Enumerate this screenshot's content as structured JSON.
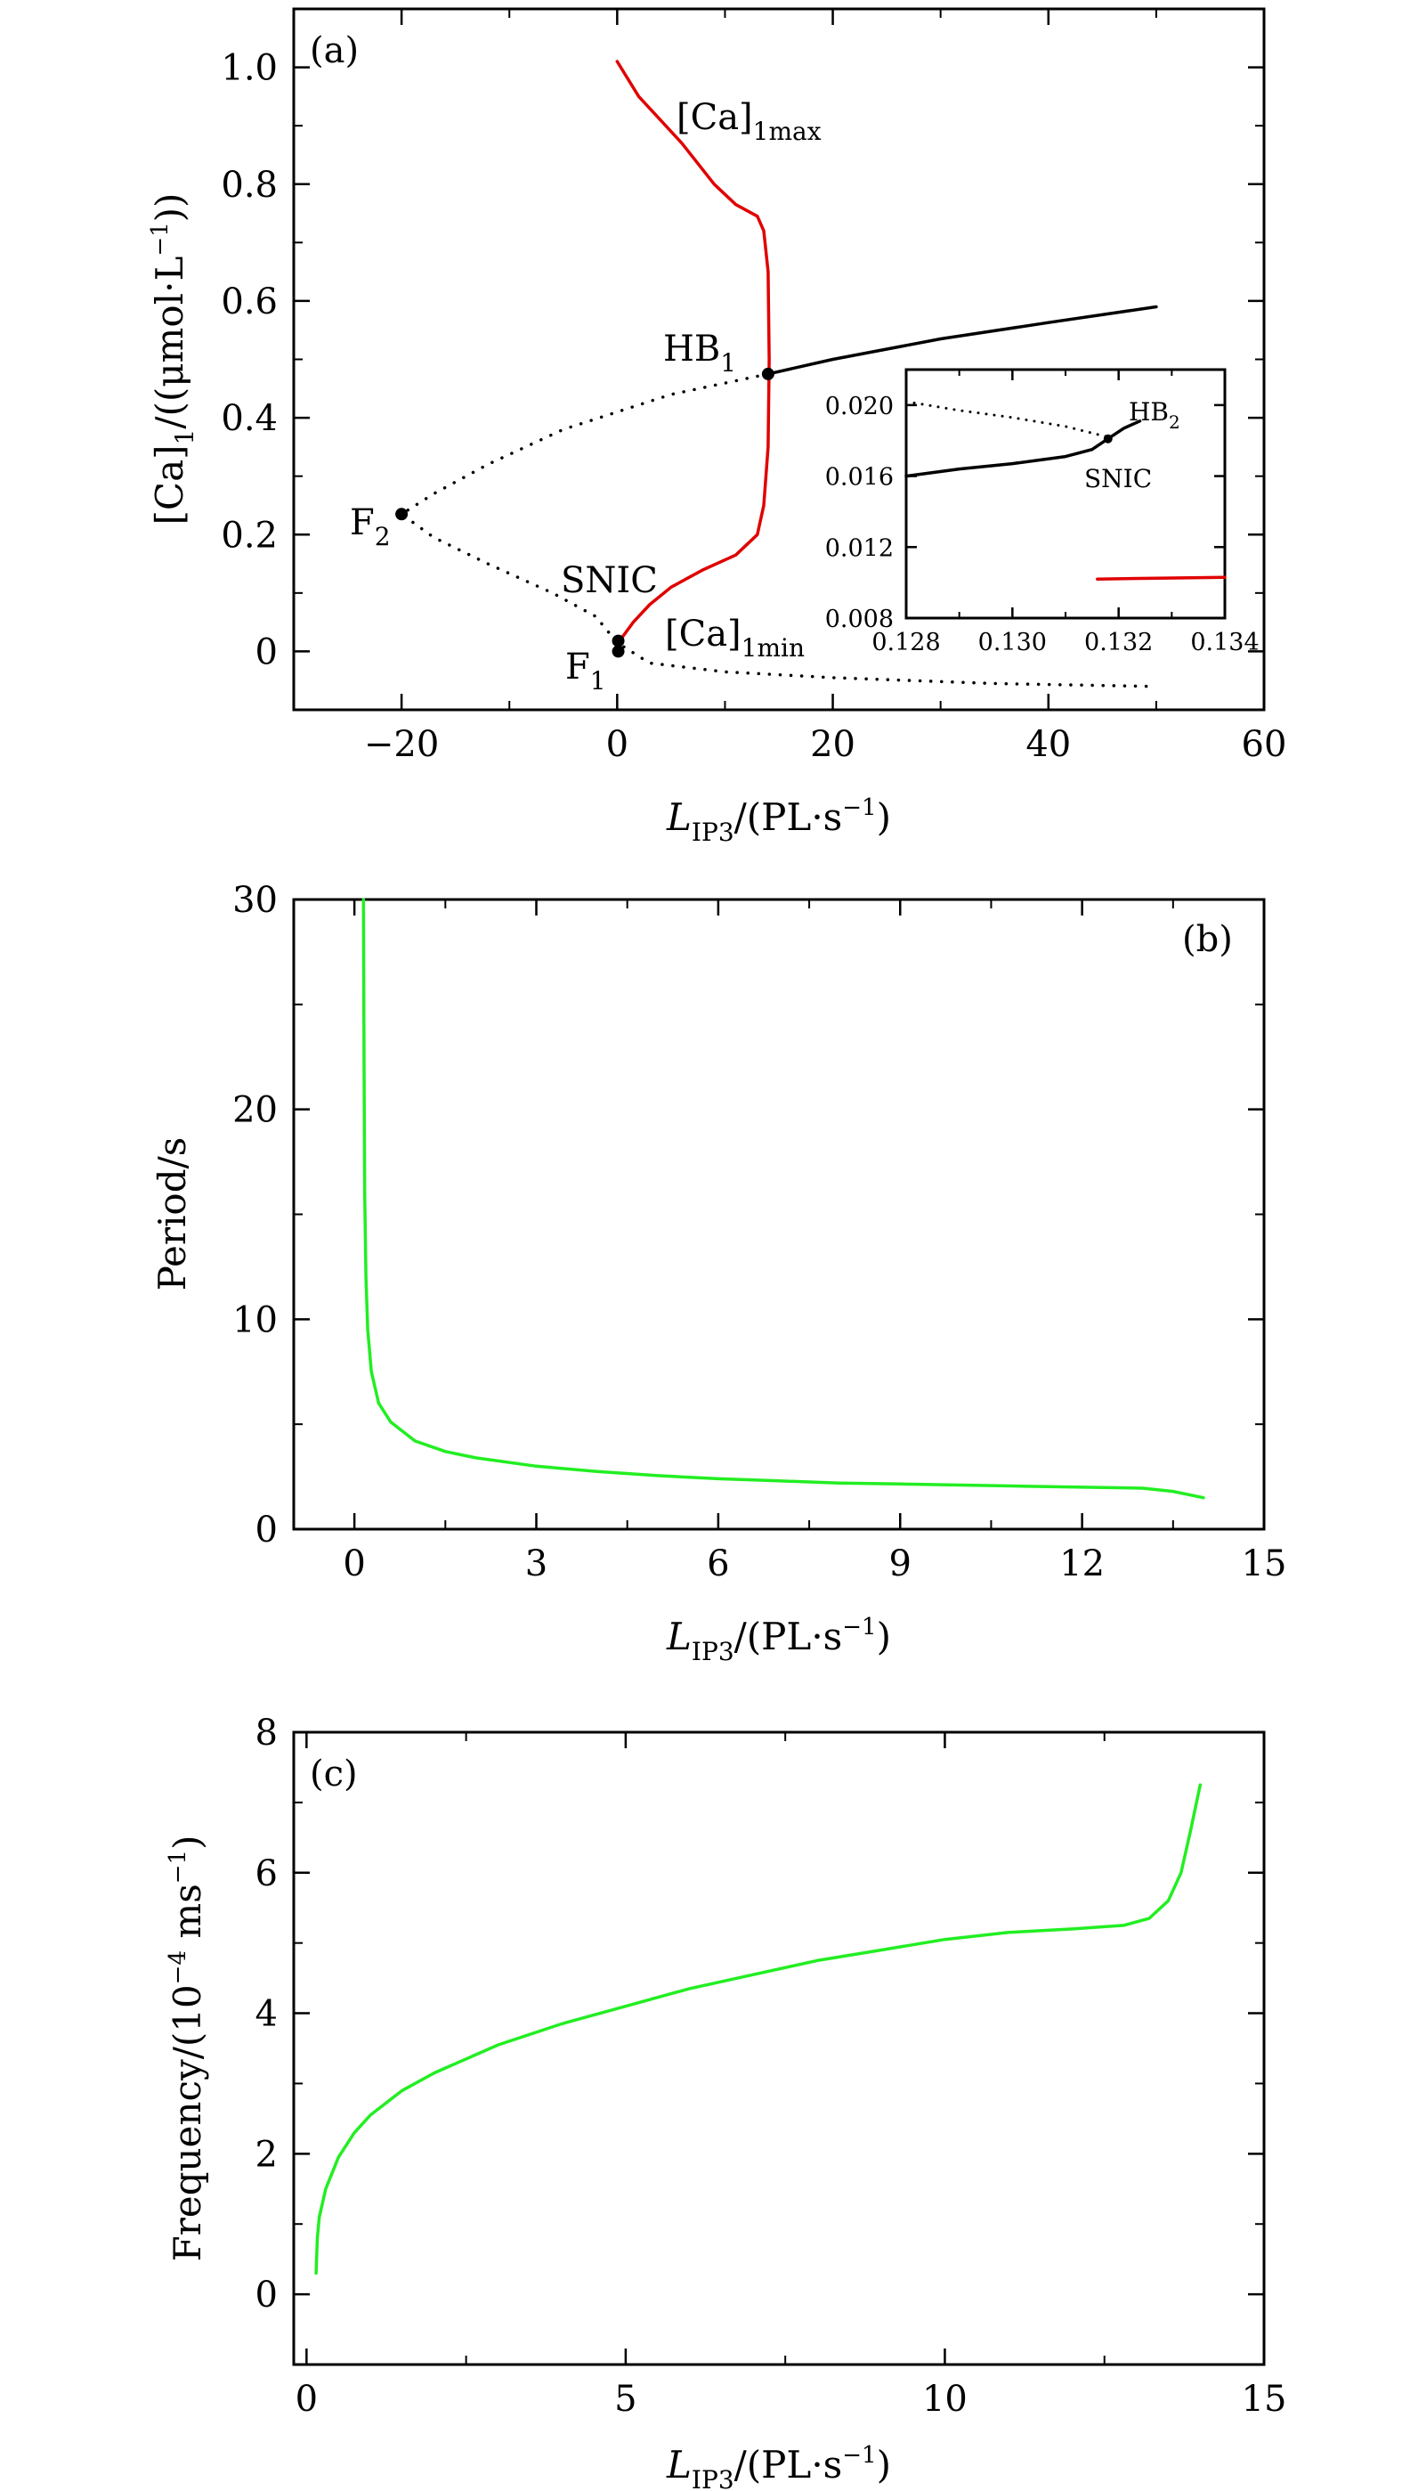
{
  "chart_data": [
    {
      "panel_label": "(a)",
      "type": "line",
      "xlim": [
        -30,
        60
      ],
      "ylim": [
        -0.1,
        1.1
      ],
      "x_ticks": [
        -20,
        0,
        20,
        40,
        60
      ],
      "x_tick_labels": [
        "−20",
        "0",
        "20",
        "40",
        "60"
      ],
      "y_ticks": [
        0,
        0.2,
        0.4,
        0.6,
        0.8,
        1.0
      ],
      "y_tick_labels": [
        "0",
        "0.2",
        "0.4",
        "0.6",
        "0.8",
        "1.0"
      ],
      "xlabel": {
        "main": "L",
        "sub": "IP3",
        "rest": "/(PL·s",
        "sup": "−1",
        "end": ")"
      },
      "ylabel": {
        "pre": "[Ca]",
        "sub": "1",
        "mid": "/((μmol·L",
        "sup": "−1",
        "end": "))"
      },
      "series": [
        {
          "style": "solid",
          "color": "#000000",
          "points": [
            [
              14,
              0.475
            ],
            [
              20,
              0.5
            ],
            [
              30,
              0.535
            ],
            [
              40,
              0.563
            ],
            [
              50,
              0.59
            ]
          ]
        },
        {
          "style": "dotted",
          "color": "#000000",
          "points": [
            [
              14,
              0.475
            ],
            [
              5,
              0.44
            ],
            [
              -5,
              0.38
            ],
            [
              -12,
              0.32
            ],
            [
              -17,
              0.27
            ],
            [
              -20,
              0.235
            ],
            [
              -17,
              0.195
            ],
            [
              -12,
              0.15
            ],
            [
              -6,
              0.1
            ],
            [
              -2,
              0.06
            ],
            [
              0,
              0.015
            ],
            [
              3,
              -0.02
            ],
            [
              10,
              -0.035
            ],
            [
              20,
              -0.045
            ],
            [
              35,
              -0.055
            ],
            [
              50,
              -0.06
            ]
          ]
        },
        {
          "name_pre": "[Ca]",
          "name_sub": "1max",
          "style": "solid",
          "color": "#e00000",
          "points": [
            [
              0,
              1.01
            ],
            [
              2,
              0.95
            ],
            [
              6,
              0.87
            ],
            [
              9,
              0.8
            ],
            [
              11,
              0.765
            ],
            [
              13,
              0.745
            ],
            [
              13.6,
              0.72
            ],
            [
              14,
              0.65
            ],
            [
              14.1,
              0.5
            ],
            [
              14,
              0.35
            ],
            [
              13.6,
              0.25
            ],
            [
              13,
              0.2
            ],
            [
              11,
              0.165
            ],
            [
              8,
              0.14
            ],
            [
              5,
              0.11
            ],
            [
              3,
              0.08
            ],
            [
              1.5,
              0.05
            ],
            [
              0.5,
              0.025
            ],
            [
              0.2,
              0.015
            ]
          ]
        }
      ],
      "points": [
        {
          "label": "HB",
          "label_sub": "1",
          "x": 14,
          "y": 0.475
        },
        {
          "label": "F",
          "label_sub": "2",
          "x": -20,
          "y": 0.235
        },
        {
          "label": "SNIC",
          "x": 0.1,
          "y": 0.018
        },
        {
          "label": "F",
          "label_sub": "1",
          "x": 0.1,
          "y": 0.0
        }
      ],
      "annotations": {
        "ca_max": {
          "pre": "[Ca]",
          "sub": "1max"
        },
        "ca_min": {
          "pre": "[Ca]",
          "sub": "1min"
        },
        "hb1": {
          "pre": "HB",
          "sub": "1"
        },
        "f2": {
          "pre": "F",
          "sub": "2"
        },
        "f1": {
          "pre": "F",
          "sub": "1"
        },
        "snic": "SNIC"
      },
      "inset": {
        "xlim": [
          0.128,
          0.134
        ],
        "ylim": [
          0.008,
          0.022
        ],
        "x_ticks": [
          0.128,
          0.13,
          0.132,
          0.134
        ],
        "x_tick_labels": [
          "0.128",
          "0.130",
          "0.132",
          "0.134"
        ],
        "y_ticks": [
          0.008,
          0.012,
          0.016,
          0.02
        ],
        "y_tick_labels": [
          "0.008",
          "0.012",
          "0.016",
          "0.020"
        ],
        "series": [
          {
            "style": "dotted",
            "color": "#000000",
            "points": [
              [
                0.128,
                0.0202
              ],
              [
                0.129,
                0.0197
              ],
              [
                0.13,
                0.0193
              ],
              [
                0.131,
                0.0188
              ],
              [
                0.1318,
                0.0182
              ]
            ]
          },
          {
            "style": "solid",
            "color": "#000000",
            "points": [
              [
                0.128,
                0.016
              ],
              [
                0.129,
                0.0164
              ],
              [
                0.13,
                0.0167
              ],
              [
                0.131,
                0.0171
              ],
              [
                0.1315,
                0.0175
              ],
              [
                0.1318,
                0.0181
              ],
              [
                0.1321,
                0.0187
              ],
              [
                0.1324,
                0.0191
              ]
            ]
          },
          {
            "style": "solid",
            "color": "#e00000",
            "points": [
              [
                0.1316,
                0.0102
              ],
              [
                0.134,
                0.0103
              ]
            ]
          }
        ],
        "points": [
          {
            "x": 0.1318,
            "y": 0.0181
          }
        ],
        "annotations": {
          "hb2": {
            "pre": "HB",
            "sub": "2"
          },
          "snic": "SNIC"
        }
      }
    },
    {
      "panel_label": "(b)",
      "type": "line",
      "xlim": [
        -1,
        15
      ],
      "ylim": [
        0,
        30
      ],
      "x_ticks": [
        0,
        3,
        6,
        9,
        12,
        15
      ],
      "x_tick_labels": [
        "0",
        "3",
        "6",
        "9",
        "12",
        "15"
      ],
      "y_ticks": [
        0,
        10,
        20,
        30
      ],
      "y_tick_labels": [
        "0",
        "10",
        "20",
        "30"
      ],
      "xlabel": {
        "main": "L",
        "sub": "IP3",
        "rest": "/(PL·s",
        "sup": "−1",
        "end": ")"
      },
      "ylabel": "Period/s",
      "series": [
        {
          "style": "solid",
          "color": "#22ee22",
          "points": [
            [
              0.15,
              30
            ],
            [
              0.16,
              22
            ],
            [
              0.17,
              16
            ],
            [
              0.19,
              12
            ],
            [
              0.22,
              9.5
            ],
            [
              0.28,
              7.5
            ],
            [
              0.4,
              6
            ],
            [
              0.6,
              5.1
            ],
            [
              1,
              4.2
            ],
            [
              1.5,
              3.7
            ],
            [
              2,
              3.4
            ],
            [
              3,
              3.0
            ],
            [
              4,
              2.75
            ],
            [
              5,
              2.55
            ],
            [
              6,
              2.4
            ],
            [
              7,
              2.3
            ],
            [
              8,
              2.2
            ],
            [
              9,
              2.15
            ],
            [
              10,
              2.1
            ],
            [
              11,
              2.05
            ],
            [
              12,
              2.0
            ],
            [
              13,
              1.95
            ],
            [
              13.5,
              1.8
            ],
            [
              14,
              1.5
            ]
          ]
        }
      ]
    },
    {
      "panel_label": "(c)",
      "type": "line",
      "xlim": [
        -0.2,
        15
      ],
      "ylim": [
        -1,
        8
      ],
      "x_ticks": [
        0,
        5,
        10,
        15
      ],
      "x_tick_labels": [
        "0",
        "5",
        "10",
        "15"
      ],
      "y_ticks": [
        0,
        2,
        4,
        6,
        8
      ],
      "y_tick_labels": [
        "0",
        "2",
        "4",
        "6",
        "8"
      ],
      "xlabel": {
        "main": "L",
        "sub": "IP3",
        "rest": "/(PL·s",
        "sup": "−1",
        "end": ")"
      },
      "ylabel": {
        "pre": "Frequency/(10",
        "sup": "−4",
        "end": " ms",
        "sup2": "−1",
        "end2": ")"
      },
      "series": [
        {
          "style": "solid",
          "color": "#22ee22",
          "points": [
            [
              0.15,
              0.3
            ],
            [
              0.17,
              0.8
            ],
            [
              0.2,
              1.1
            ],
            [
              0.3,
              1.5
            ],
            [
              0.5,
              1.95
            ],
            [
              0.75,
              2.3
            ],
            [
              1,
              2.55
            ],
            [
              1.5,
              2.9
            ],
            [
              2,
              3.15
            ],
            [
              3,
              3.55
            ],
            [
              4,
              3.85
            ],
            [
              5,
              4.1
            ],
            [
              6,
              4.35
            ],
            [
              7,
              4.55
            ],
            [
              8,
              4.75
            ],
            [
              9,
              4.9
            ],
            [
              10,
              5.05
            ],
            [
              11,
              5.15
            ],
            [
              12,
              5.2
            ],
            [
              12.8,
              5.25
            ],
            [
              13.2,
              5.35
            ],
            [
              13.5,
              5.6
            ],
            [
              13.7,
              6.0
            ],
            [
              13.85,
              6.6
            ],
            [
              14,
              7.25
            ]
          ]
        }
      ]
    }
  ]
}
